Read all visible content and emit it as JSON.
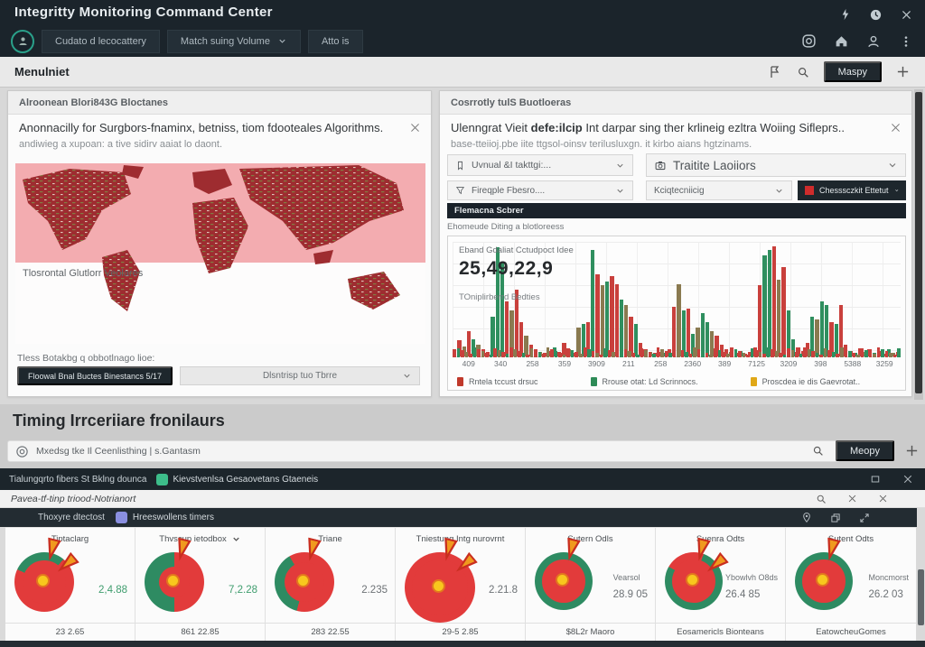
{
  "window": {
    "title": "Integritty Monitoring Command Center"
  },
  "header": {
    "user_button": "Cudato d lecocattery",
    "volume_dropdown": "Match suing Volume",
    "auto_button": "Atto is"
  },
  "menubar": {
    "title": "Menulniet",
    "map_button": "Maspy"
  },
  "left_panel": {
    "header": "Alroonean Blori843G Bloctanes",
    "message_title": "Anonnacilly for Surgbors-fnaminx, betniss, tiom fdooteales Algorithms.",
    "message_sub": "andiwieg a xupoan: a tive sidirv aaiat lo daont.",
    "map_label": "Tlosrontal Glutlorr Veolares",
    "footer_label": "Tless Botakbg q obbotlnago lioe:",
    "footer_button": "Floowal Bnal Buctes Binestancs 5/17",
    "footer_dropdown": "Dlsntrisp tuo Tbrre"
  },
  "right_panel": {
    "header": "Cosrrotly tulS Buotloeras",
    "message_title_pre": "Ulenngrat Vieit ",
    "message_title_bold": "defe:ilcip",
    "message_title_post": " Int darpar sing ther krlineig ezltra Woiing Sifleprs..",
    "message_sub": "base-tteiioj.pbe iite ttgsol-oinsv terilusluxgn. it kirbo aians hgtzinams.",
    "dropdown_views": "Uvnual &I takttgi:...",
    "dropdown_traffic": "Traitite Laoiiors",
    "dropdown_fireple": "Fireqple Fbesro....",
    "dropdown_kcq": "Kciqtecniicig",
    "button_checkpoint": "Chesssczkit Ettetut",
    "bar_label": "Flemacna Scbrer",
    "chart_caption": "Ehomeude Diting a blotloreess",
    "stat_label": "Eband Gdaliat Cctudpoct Idee",
    "stat_value": "25,49,22,9",
    "stat_sub": "TOniplirberrd Bedties"
  },
  "chart_data": {
    "type": "bar",
    "title": "Flemacna Scbrer",
    "ylim": [
      0,
      100
    ],
    "grid": true,
    "legend_position": "bottom",
    "x_ticks": [
      "409",
      "340",
      "258",
      "359",
      "3909",
      "211",
      "258",
      "2360",
      "389",
      "7125",
      "3209",
      "398",
      "5388",
      "3259"
    ],
    "heights": [
      6,
      14,
      9,
      22,
      15,
      10,
      6,
      4,
      35,
      95,
      82,
      48,
      40,
      58,
      30,
      18,
      10,
      6,
      4,
      3,
      5,
      8,
      4,
      12,
      6,
      3,
      25,
      28,
      30,
      93,
      72,
      62,
      65,
      70,
      63,
      50,
      45,
      35,
      28,
      12,
      6,
      4,
      3,
      4,
      3,
      6,
      43,
      63,
      40,
      42,
      20,
      25,
      38,
      30,
      22,
      18,
      10,
      6,
      4,
      3,
      5,
      2,
      4,
      8,
      62,
      88,
      93,
      96,
      67,
      78,
      40,
      15,
      8,
      5,
      12,
      35,
      32,
      48,
      45,
      30,
      28,
      45,
      10,
      5,
      3,
      7,
      4,
      6,
      3,
      5,
      2,
      6,
      3,
      4
    ],
    "colors": "rrorgorrgggrorrorrorrgrrorogrgrogrrgorgrrorrgrrogrgoggorrrorgrrrrggrorggrrrgoggrgrrrgrorgrrgor",
    "color_map": {
      "r": "#c9403c",
      "g": "#2f8f5f",
      "o": "#8a7a50"
    },
    "baseline_count": 110,
    "legend": [
      {
        "label": "Rntela tccust drsuc",
        "color": "#c0392b"
      },
      {
        "label": "Rrouse otat: Ld Scrinnocs.",
        "color": "#2e8b57"
      },
      {
        "label": "Proscdea ie dis Gaevrotat..",
        "color": "#e0a818"
      }
    ]
  },
  "middle": {
    "heading": "Timing Irrceriiare fronilaurs",
    "search_value": "Mxedsg tke Il Ceenlisthing | s.Gantasm",
    "map_button": "Meopy"
  },
  "bottom_window": {
    "titlebar_text": "Tialungqrto fibers St Bklng dounca",
    "titlebar_badge": "Kievstvenlsa Gesaovetans Gtaeneis",
    "subtitle": "Pavea-tf-tinp triood-Notrianort",
    "toolbar_text": "Thoxyre dtectost",
    "toolbar_badge": "Hreeswollens timers",
    "columns": [
      {
        "header": "Tiptaclarg",
        "value": "2,4.88",
        "value_label": "",
        "footer": "23 2.65",
        "value_class": "v-green",
        "gauge": {
          "green": [
            295,
            40
          ],
          "inner": 14,
          "flags": 2,
          "size": 66
        }
      },
      {
        "header": "Thvscup ietodbox",
        "value": "7,2.28",
        "value_label": "",
        "footer": "861 22.85",
        "value_class": "v-green",
        "gauge": {
          "green": [
            180,
            360
          ],
          "inner": 24,
          "flags": 1,
          "size": 66
        }
      },
      {
        "header": "Triane",
        "value": "2.235",
        "value_label": "",
        "footer": "283 22.55",
        "value_class": "v-gray",
        "gauge": {
          "green": [
            195,
            330
          ],
          "inner": 16,
          "flags": 1,
          "size": 66
        }
      },
      {
        "header": "Tniestung Intg nurovrnt",
        "value": "2.21.8",
        "value_label": "",
        "footer": "29-5 2.85",
        "value_class": "v-gray",
        "gauge": {
          "green": [
            0,
            0
          ],
          "inner": 10,
          "flags": 2,
          "size": 78
        }
      },
      {
        "header": "Sutern Odls",
        "value": "28.9 05",
        "value_label": "Vearsol",
        "footer": "$8L2r Maoro",
        "value_class": "v-gray",
        "gauge": {
          "green": [
            0,
            360
          ],
          "inner": 13,
          "flags": 1,
          "size": 64
        }
      },
      {
        "header": "Suenra Odts",
        "value": "26.4 85",
        "value_label": "Ybowlvh O8ds",
        "footer": "Eosamericls Bionteans",
        "value_class": "v-gray",
        "gauge": {
          "green": [
            20,
            300
          ],
          "inner": 13,
          "flags": 2,
          "size": 64
        }
      },
      {
        "header": "Sutent Odts",
        "value": "26.2 03",
        "value_label": "Moncmorst",
        "footer": "EatowcheuGomes",
        "value_class": "v-gray",
        "gauge": {
          "green": [
            0,
            360
          ],
          "inner": 13,
          "flags": 1,
          "size": 64
        }
      }
    ]
  },
  "colors": {
    "accent_teal": "#2aa08a",
    "chrome_dark": "#1b242b",
    "gauge_red": "#e23b3b",
    "gauge_green": "#2e8b62",
    "center_yellow": "#f8c71d",
    "center_orange": "#e2771f",
    "badge_green": "#3dbd8a",
    "badge_purple": "#8a8fe0",
    "map_red": "#9e2c30",
    "map_pink": "#f3acb0"
  }
}
